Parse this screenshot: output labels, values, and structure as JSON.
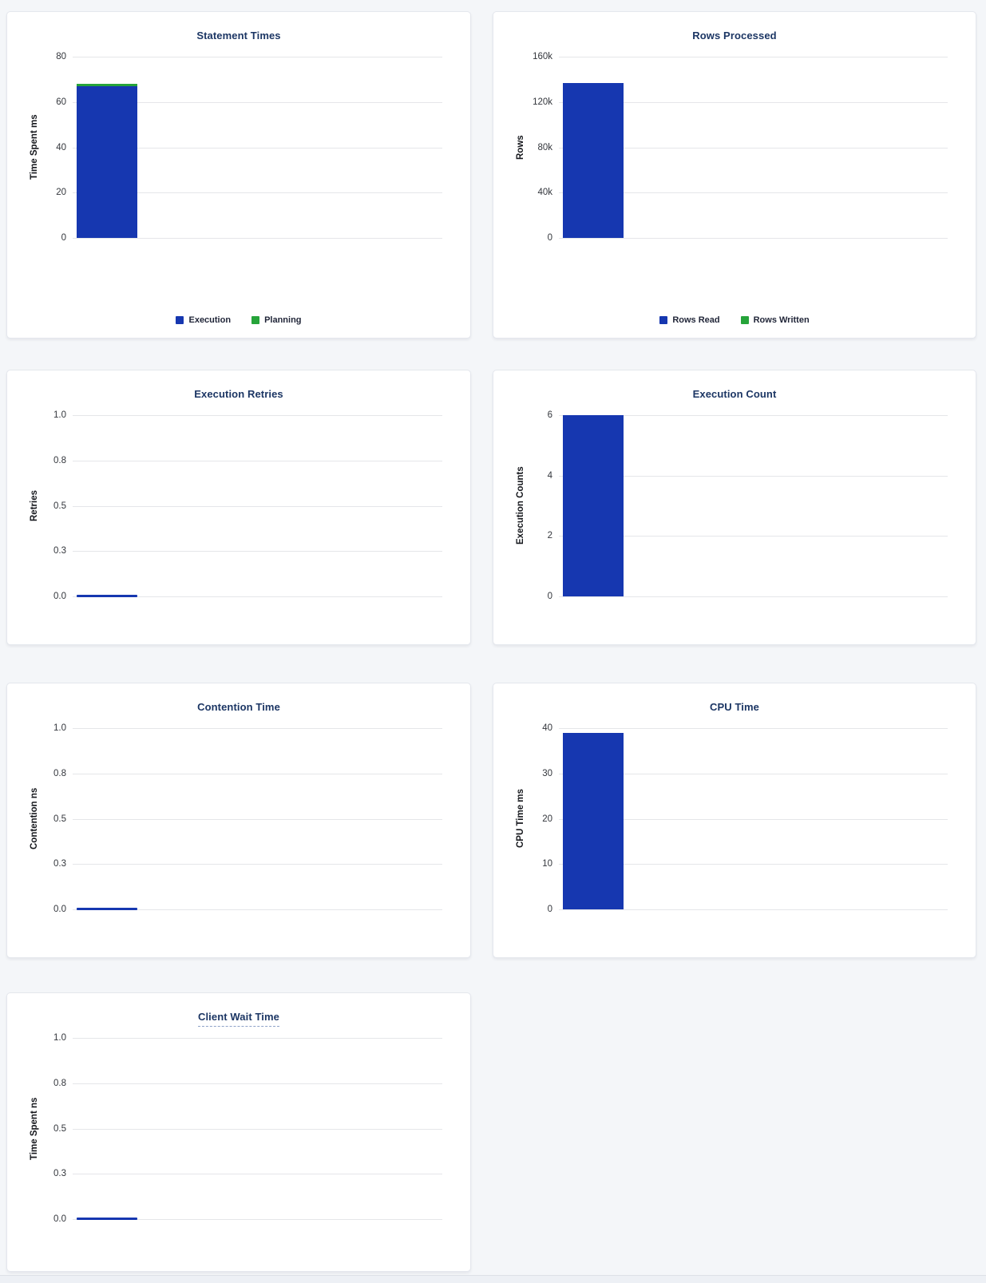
{
  "page": {
    "background": "#f4f6f9"
  },
  "colors": {
    "blue": "#1637b0",
    "green": "#26a43a",
    "title": "#1c3664",
    "gridline": "#e5e6e9",
    "tick_text": "#33363c"
  },
  "chart_data": [
    {
      "id": "statement-times",
      "type": "bar",
      "stacked": true,
      "title": "Statement Times",
      "ylabel": "Time Spent ms",
      "ylim": [
        0,
        80
      ],
      "yticks": [
        "80",
        "60",
        "40",
        "20",
        "0"
      ],
      "grid": true,
      "legend_position": "bottom",
      "series": [
        {
          "name": "Execution",
          "color_key": "blue",
          "value": 67
        },
        {
          "name": "Planning",
          "color_key": "green",
          "value": 1
        }
      ]
    },
    {
      "id": "rows-processed",
      "type": "bar",
      "stacked": true,
      "title": "Rows Processed",
      "ylabel": "Rows",
      "ylim": [
        0,
        160000
      ],
      "yticks": [
        "160k",
        "120k",
        "80k",
        "40k",
        "0"
      ],
      "grid": true,
      "legend_position": "bottom",
      "series": [
        {
          "name": "Rows Read",
          "color_key": "blue",
          "value": 136500
        },
        {
          "name": "Rows Written",
          "color_key": "green",
          "value": 0
        }
      ]
    },
    {
      "id": "execution-retries",
      "type": "bar",
      "title": "Execution Retries",
      "ylabel": "Retries",
      "ylim": [
        0,
        1
      ],
      "yticks": [
        "1.0",
        "0.8",
        "0.5",
        "0.3",
        "0.0"
      ],
      "grid": true,
      "legend_position": "none",
      "series": [
        {
          "name": "Retries",
          "color_key": "blue",
          "value": 0
        }
      ]
    },
    {
      "id": "execution-count",
      "type": "bar",
      "title": "Execution Count",
      "ylabel": "Execution Counts",
      "ylim": [
        0,
        6
      ],
      "yticks": [
        "6",
        "4",
        "2",
        "0"
      ],
      "grid": true,
      "legend_position": "none",
      "series": [
        {
          "name": "Execution Count",
          "color_key": "blue",
          "value": 6
        }
      ]
    },
    {
      "id": "contention-time",
      "type": "bar",
      "title": "Contention Time",
      "ylabel": "Contention ns",
      "ylim": [
        0,
        1
      ],
      "yticks": [
        "1.0",
        "0.8",
        "0.5",
        "0.3",
        "0.0"
      ],
      "grid": true,
      "legend_position": "none",
      "series": [
        {
          "name": "Contention",
          "color_key": "blue",
          "value": 0
        }
      ]
    },
    {
      "id": "cpu-time",
      "type": "bar",
      "title": "CPU Time",
      "ylabel": "CPU Time ms",
      "ylim": [
        0,
        40
      ],
      "yticks": [
        "40",
        "30",
        "20",
        "10",
        "0"
      ],
      "grid": true,
      "legend_position": "none",
      "series": [
        {
          "name": "CPU Time",
          "color_key": "blue",
          "value": 39
        }
      ]
    },
    {
      "id": "client-wait-time",
      "type": "bar",
      "title": "Client Wait Time",
      "ylabel": "Time Spent ns",
      "title_underlined": true,
      "ylim": [
        0,
        1
      ],
      "yticks": [
        "1.0",
        "0.8",
        "0.5",
        "0.3",
        "0.0"
      ],
      "grid": true,
      "legend_position": "none",
      "series": [
        {
          "name": "Client Wait",
          "color_key": "blue",
          "value": 0
        }
      ]
    }
  ]
}
